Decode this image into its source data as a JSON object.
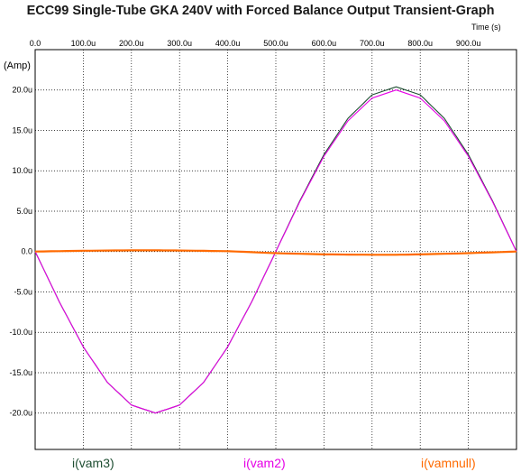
{
  "chart_data": {
    "type": "line",
    "title": "ECC99 Single-Tube GKA 240V with Forced Balance Output Transient-Graph",
    "xlabel": "Time   (s)",
    "ylabel": "(Amp)",
    "x_ticks": [
      "0.0",
      "100.0u",
      "200.0u",
      "300.0u",
      "400.0u",
      "500.0u",
      "600.0u",
      "700.0u",
      "800.0u",
      "900.0u"
    ],
    "x_tick_values": [
      0,
      100,
      200,
      300,
      400,
      500,
      600,
      700,
      800,
      900
    ],
    "y_ticks": [
      "20.0u",
      "15.0u",
      "10.0u",
      "5.0u",
      "0.0",
      "-5.0u",
      "-10.0u",
      "-15.0u",
      "-20.0u"
    ],
    "y_tick_values": [
      20,
      15,
      10,
      5,
      0,
      -5,
      -10,
      -15,
      -20
    ],
    "xlim": [
      0,
      1000
    ],
    "ylim": [
      -24.5,
      25
    ],
    "grid": true,
    "x_units": "microseconds",
    "y_units": "microamps",
    "series": [
      {
        "name": "i(vam3)",
        "color": "#1f4f33",
        "x": [
          0,
          50,
          100,
          150,
          200,
          250,
          300,
          350,
          400,
          450,
          500,
          550,
          600,
          650,
          700,
          750,
          800,
          850,
          900,
          950,
          1000
        ],
        "y": [
          0,
          -6.2,
          -11.8,
          -16.2,
          -19.0,
          -20.0,
          -19.0,
          -16.2,
          -11.8,
          -6.2,
          0,
          6.3,
          12.0,
          16.5,
          19.4,
          20.4,
          19.4,
          16.5,
          12.0,
          6.3,
          0
        ]
      },
      {
        "name": "i(vam2)",
        "color": "#e600e6",
        "x": [
          0,
          50,
          100,
          150,
          200,
          250,
          300,
          350,
          400,
          450,
          500,
          550,
          600,
          650,
          700,
          750,
          800,
          850,
          900,
          950,
          1000
        ],
        "y": [
          0,
          -6.2,
          -11.8,
          -16.2,
          -19.0,
          -20.0,
          -19.0,
          -16.2,
          -11.8,
          -6.2,
          0,
          6.2,
          11.8,
          16.2,
          19.0,
          20.0,
          19.0,
          16.2,
          11.8,
          6.2,
          0
        ]
      },
      {
        "name": "i(vamnull)",
        "color": "#ff6a00",
        "x": [
          0,
          100,
          200,
          250,
          300,
          400,
          500,
          600,
          700,
          750,
          800,
          900,
          1000
        ],
        "y": [
          0,
          0.1,
          0.15,
          0.15,
          0.13,
          0.05,
          -0.2,
          -0.35,
          -0.4,
          -0.4,
          -0.35,
          -0.2,
          0
        ]
      }
    ]
  }
}
